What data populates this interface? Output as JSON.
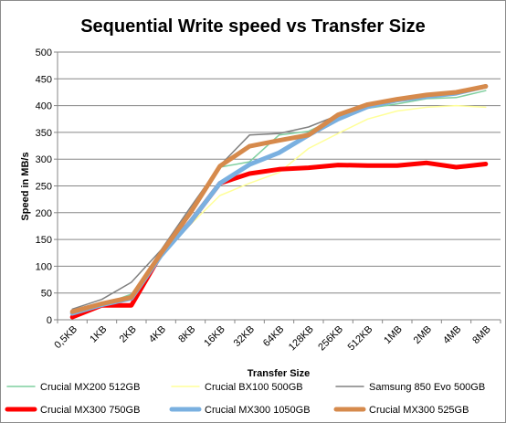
{
  "chart_data": {
    "type": "line",
    "title": "Sequential Write speed vs Transfer Size",
    "xlabel": "Transfer Size",
    "ylabel": "Speed in MB/s",
    "ylim": [
      0,
      500
    ],
    "yticks": [
      "0",
      "50",
      "100",
      "150",
      "200",
      "250",
      "300",
      "350",
      "400",
      "450",
      "500"
    ],
    "grid": "horizontal",
    "legend_position": "bottom",
    "categories": [
      "0,5KB",
      "1KB",
      "2KB",
      "4KB",
      "8KB",
      "16KB",
      "32KB",
      "64KB",
      "128KB",
      "256KB",
      "512KB",
      "1MB",
      "2MB",
      "4MB",
      "8MB"
    ],
    "series": [
      {
        "name": "Crucial MX200 512GB",
        "color": "#7fcf9f",
        "width": 1.5,
        "values": [
          12,
          28,
          48,
          122,
          200,
          285,
          295,
          345,
          352,
          378,
          395,
          403,
          413,
          415,
          428
        ]
      },
      {
        "name": "Crucial BX100 500GB",
        "color": "#ffff99",
        "width": 1.5,
        "values": [
          12,
          25,
          38,
          118,
          178,
          232,
          255,
          275,
          320,
          348,
          375,
          390,
          397,
          400,
          397
        ]
      },
      {
        "name": "Samsung 850 Evo 500GB",
        "color": "#808080",
        "width": 1.5,
        "values": [
          20,
          38,
          70,
          130,
          210,
          288,
          345,
          348,
          360,
          382,
          400,
          410,
          418,
          423,
          436
        ]
      },
      {
        "name": "Crucial MX300 750GB",
        "color": "#ff0000",
        "width": 5,
        "values": [
          5,
          27,
          27,
          122,
          183,
          255,
          273,
          281,
          284,
          289,
          288,
          288,
          293,
          285,
          291
        ]
      },
      {
        "name": "Crucial MX300 1050GB",
        "color": "#7ab0e0",
        "width": 5,
        "values": [
          12,
          28,
          40,
          120,
          183,
          255,
          290,
          312,
          345,
          375,
          398,
          410,
          417,
          423,
          436
        ]
      },
      {
        "name": "Crucial MX300 525GB",
        "color": "#d68a4c",
        "width": 5,
        "values": [
          15,
          30,
          42,
          124,
          200,
          287,
          324,
          335,
          345,
          383,
          402,
          412,
          420,
          425,
          436
        ]
      }
    ]
  }
}
